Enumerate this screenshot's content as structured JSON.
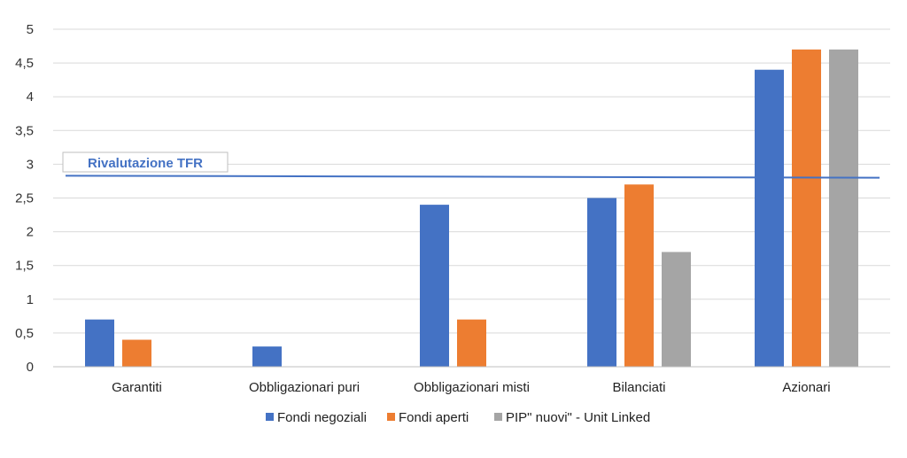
{
  "chart_data": {
    "type": "bar",
    "categories": [
      "Garantiti",
      "Obbligazionari puri",
      "Obbligazionari misti",
      "Bilanciati",
      "Azionari"
    ],
    "series": [
      {
        "name": "Fondi negoziali",
        "values": [
          0.7,
          0.3,
          2.4,
          2.5,
          4.4
        ],
        "color": "#4472C4"
      },
      {
        "name": "Fondi aperti",
        "values": [
          0.4,
          null,
          0.7,
          2.7,
          4.7
        ],
        "color": "#ED7D31"
      },
      {
        "name": "PIP\" nuovi\" - Unit Linked",
        "values": [
          null,
          null,
          null,
          1.7,
          4.7
        ],
        "color": "#A5A5A5"
      }
    ],
    "yticks": [
      "0",
      "0,5",
      "1",
      "1,5",
      "2",
      "2,5",
      "3",
      "3,5",
      "4",
      "4,5",
      "5"
    ],
    "ylim": [
      0,
      5
    ],
    "grid": true,
    "legend_position": "bottom",
    "reference_line": {
      "label": "Rivalutazione TFR",
      "value_start": 2.83,
      "value_end": 2.8,
      "color": "#4472C4"
    }
  }
}
